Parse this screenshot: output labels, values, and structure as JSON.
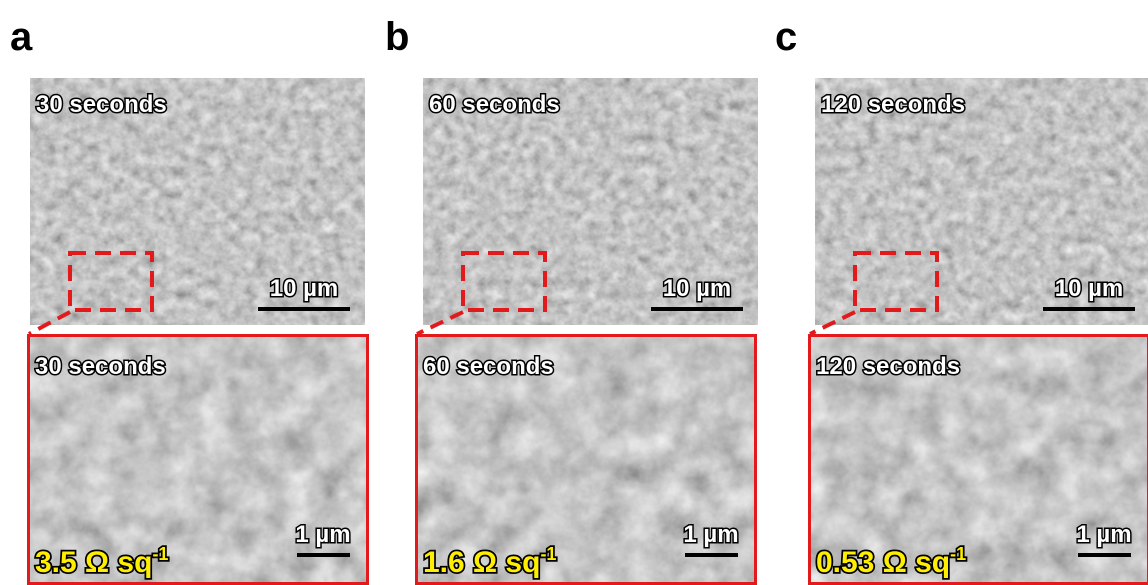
{
  "panels": [
    {
      "letter": "a",
      "overview": {
        "label": "30 seconds",
        "scale_bar": "10 µm"
      },
      "zoom": {
        "label": "30 seconds",
        "sheet_resistance": {
          "text": "3.5 Ω sq",
          "superscript": "-1"
        },
        "scale_bar": "1 µm"
      }
    },
    {
      "letter": "b",
      "overview": {
        "label": "60 seconds",
        "scale_bar": "10 µm"
      },
      "zoom": {
        "label": "60 seconds",
        "sheet_resistance": {
          "text": "1.6 Ω sq",
          "superscript": "-1"
        },
        "scale_bar": "1 µm"
      }
    },
    {
      "letter": "c",
      "overview": {
        "label": "120 seconds",
        "scale_bar": "10 µm"
      },
      "zoom": {
        "label": "120 seconds",
        "sheet_resistance": {
          "text": "0.53 Ω sq",
          "superscript": "-1"
        },
        "scale_bar": "1 µm"
      }
    }
  ]
}
